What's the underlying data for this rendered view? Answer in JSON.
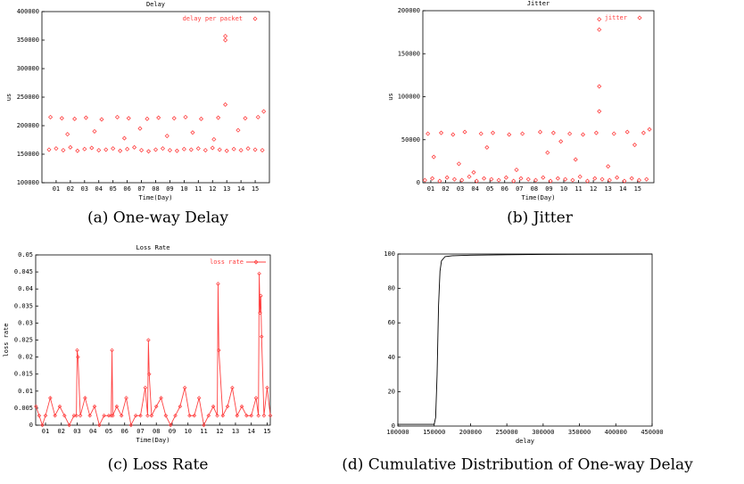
{
  "chart_data": [
    {
      "type": "scatter",
      "title": "Delay",
      "caption": "(a) One-way Delay",
      "x_label": "Time(Day)",
      "y_label": "us",
      "legend": "upper right",
      "xlim": [
        0,
        16
      ],
      "ylim": [
        100000,
        400000
      ],
      "xticks": [
        {
          "value": 1,
          "label": "01"
        },
        {
          "value": 2,
          "label": "02"
        },
        {
          "value": 3,
          "label": "03"
        },
        {
          "value": 4,
          "label": "04"
        },
        {
          "value": 5,
          "label": "05"
        },
        {
          "value": 6,
          "label": "06"
        },
        {
          "value": 7,
          "label": "07"
        },
        {
          "value": 8,
          "label": "08"
        },
        {
          "value": 9,
          "label": "09"
        },
        {
          "value": 10,
          "label": "10"
        },
        {
          "value": 11,
          "label": "11"
        },
        {
          "value": 12,
          "label": "12"
        },
        {
          "value": 13,
          "label": "13"
        },
        {
          "value": 14,
          "label": "14"
        },
        {
          "value": 15,
          "label": "15"
        }
      ],
      "yticks": [
        100000,
        150000,
        200000,
        250000,
        300000,
        350000,
        400000
      ],
      "x": [
        0.5,
        1,
        1.5,
        2,
        2.5,
        3,
        3.5,
        4,
        4.5,
        5,
        5.5,
        6,
        6.5,
        7,
        7.5,
        8,
        8.5,
        9,
        9.5,
        10,
        10.5,
        11,
        11.5,
        12,
        12.5,
        13,
        13.5,
        14,
        14.5,
        15,
        15.5,
        0.6,
        1.4,
        2.3,
        3.1,
        4.2,
        5.3,
        6.1,
        7.4,
        8.2,
        9.3,
        10.1,
        11.2,
        12.4,
        14.3,
        15.2,
        1.8,
        3.7,
        5.8,
        6.9,
        8.8,
        10.6,
        12.1,
        13.8,
        12.9,
        12.9,
        12.9,
        15.6
      ],
      "series": [
        {
          "name": "delay per packet",
          "color": "#ff4040",
          "values": [
            158000,
            160000,
            157000,
            162000,
            156000,
            159000,
            161000,
            157000,
            158000,
            160000,
            156000,
            159000,
            162000,
            157000,
            155000,
            158000,
            160000,
            157000,
            156000,
            159000,
            158000,
            160000,
            157000,
            161000,
            158000,
            156000,
            159000,
            157000,
            160000,
            158000,
            157000,
            215000,
            213000,
            212000,
            214000,
            211000,
            215000,
            213000,
            212000,
            214000,
            213000,
            215000,
            212000,
            214000,
            213000,
            215000,
            185000,
            190000,
            178000,
            195000,
            182000,
            188000,
            176000,
            192000,
            357000,
            350000,
            237000,
            225000
          ]
        }
      ]
    },
    {
      "type": "scatter",
      "title": "Jitter",
      "caption": "(b) Jitter",
      "x_label": "Time(Day)",
      "y_label": "us",
      "legend": "upper right",
      "xlim": [
        0.46,
        16.1
      ],
      "ylim": [
        0,
        200000
      ],
      "xticks": [
        {
          "value": 1,
          "label": "01"
        },
        {
          "value": 2,
          "label": "02"
        },
        {
          "value": 3,
          "label": "03"
        },
        {
          "value": 4,
          "label": "04"
        },
        {
          "value": 5,
          "label": "05"
        },
        {
          "value": 6,
          "label": "06"
        },
        {
          "value": 7,
          "label": "07"
        },
        {
          "value": 8,
          "label": "08"
        },
        {
          "value": 9,
          "label": "09"
        },
        {
          "value": 10,
          "label": "10"
        },
        {
          "value": 11,
          "label": "11"
        },
        {
          "value": 12,
          "label": "12"
        },
        {
          "value": 13,
          "label": "13"
        },
        {
          "value": 14,
          "label": "14"
        },
        {
          "value": 15,
          "label": "15"
        }
      ],
      "yticks": [
        0,
        50000,
        100000,
        150000,
        200000
      ],
      "x": [
        0.6,
        1.1,
        1.6,
        2.1,
        2.6,
        3.1,
        3.6,
        4.1,
        4.6,
        5.1,
        5.6,
        6.1,
        6.6,
        7.1,
        7.6,
        8.1,
        8.6,
        9.1,
        9.6,
        10.1,
        10.6,
        11.1,
        11.6,
        12.1,
        12.6,
        13.1,
        13.6,
        14.1,
        14.6,
        15.1,
        15.6,
        0.8,
        1.7,
        2.5,
        3.3,
        4.4,
        5.2,
        6.3,
        7.2,
        8.4,
        9.3,
        10.4,
        11.3,
        12.2,
        13.4,
        14.3,
        15.4,
        1.2,
        2.9,
        4.8,
        6.8,
        8.9,
        10.8,
        13.0,
        14.8,
        3.9,
        9.8,
        12.4,
        12.4,
        12.4,
        12.4,
        15.8
      ],
      "series": [
        {
          "name": "jitter",
          "color": "#ff4040",
          "values": [
            3000,
            5000,
            2000,
            6000,
            4000,
            3000,
            7000,
            2000,
            5000,
            4000,
            3000,
            6000,
            2000,
            5000,
            4000,
            3000,
            6000,
            2000,
            5000,
            4000,
            3000,
            7000,
            2000,
            5000,
            4000,
            3000,
            6000,
            2000,
            5000,
            3000,
            4000,
            57000,
            58000,
            56000,
            59000,
            57000,
            58000,
            56000,
            57000,
            59000,
            58000,
            57000,
            56000,
            58000,
            57000,
            59000,
            58000,
            30000,
            22000,
            41000,
            15000,
            35000,
            27000,
            19000,
            44000,
            12000,
            48000,
            190000,
            178000,
            112000,
            83000,
            62000
          ]
        }
      ]
    },
    {
      "type": "line",
      "title": "Loss Rate",
      "caption": "(c) Loss Rate",
      "x_label": "Time(Day)",
      "y_label": "loss rate",
      "legend": "upper right",
      "markers": true,
      "xlim": [
        0.38,
        15.2
      ],
      "ylim": [
        0,
        0.05
      ],
      "xticks": [
        {
          "value": 1,
          "label": "01"
        },
        {
          "value": 2,
          "label": "02"
        },
        {
          "value": 3,
          "label": "03"
        },
        {
          "value": 4,
          "label": "04"
        },
        {
          "value": 5,
          "label": "05"
        },
        {
          "value": 6,
          "label": "06"
        },
        {
          "value": 7,
          "label": "07"
        },
        {
          "value": 8,
          "label": "08"
        },
        {
          "value": 9,
          "label": "09"
        },
        {
          "value": 10,
          "label": "10"
        },
        {
          "value": 11,
          "label": "11"
        },
        {
          "value": 12,
          "label": "12"
        },
        {
          "value": 13,
          "label": "13"
        },
        {
          "value": 14,
          "label": "14"
        },
        {
          "value": 15,
          "label": "15"
        }
      ],
      "yticks": [
        0,
        0.005,
        0.01,
        0.015,
        0.02,
        0.025,
        0.03,
        0.035,
        0.04,
        0.045,
        0.05
      ],
      "x": [
        0.4,
        0.6,
        0.8,
        1.0,
        1.3,
        1.6,
        1.9,
        2.2,
        2.5,
        2.8,
        2.95,
        3.0,
        3.05,
        3.2,
        3.5,
        3.8,
        4.1,
        4.4,
        4.7,
        5.0,
        5.15,
        5.2,
        5.25,
        5.5,
        5.8,
        6.1,
        6.4,
        6.7,
        7.0,
        7.3,
        7.45,
        7.5,
        7.55,
        7.7,
        8.0,
        8.3,
        8.6,
        8.9,
        9.2,
        9.5,
        9.8,
        10.1,
        10.4,
        10.7,
        11.0,
        11.3,
        11.6,
        11.85,
        11.9,
        11.95,
        12.2,
        12.5,
        12.8,
        13.1,
        13.4,
        13.7,
        14.0,
        14.3,
        14.45,
        14.5,
        14.55,
        14.6,
        14.65,
        14.8,
        15.0,
        15.2
      ],
      "series": [
        {
          "name": "loss rate",
          "color": "#ff4040",
          "values": [
            0.0055,
            0.0028,
            0,
            0.0028,
            0.008,
            0.0028,
            0.0055,
            0.0028,
            0,
            0.0028,
            0.0028,
            0.022,
            0.02,
            0.0028,
            0.008,
            0.0028,
            0.0055,
            0,
            0.0028,
            0.0028,
            0.0028,
            0.022,
            0.0028,
            0.0055,
            0.0028,
            0.008,
            0,
            0.0028,
            0.0028,
            0.011,
            0.0028,
            0.025,
            0.015,
            0.0028,
            0.0055,
            0.008,
            0.0028,
            0,
            0.0028,
            0.0055,
            0.011,
            0.0028,
            0.0028,
            0.008,
            0,
            0.0028,
            0.0055,
            0.0028,
            0.0415,
            0.022,
            0.0028,
            0.0055,
            0.011,
            0.0028,
            0.0055,
            0.0028,
            0.0028,
            0.008,
            0.0028,
            0.0445,
            0.033,
            0.038,
            0.026,
            0.0028,
            0.011,
            0.0028
          ]
        }
      ]
    },
    {
      "type": "line",
      "caption": "(d) Cumulative Distribution of One-way Delay",
      "x_label": "delay",
      "xlim": [
        100000,
        450000
      ],
      "ylim": [
        0,
        100
      ],
      "xticks": [
        100000,
        150000,
        200000,
        250000,
        300000,
        350000,
        400000,
        450000
      ],
      "yticks": [
        0,
        20,
        40,
        60,
        80,
        100
      ],
      "x": [
        100000,
        150000,
        152000,
        154000,
        156000,
        158000,
        160000,
        165000,
        175000,
        200000,
        250000,
        300000,
        450000
      ],
      "series": [
        {
          "color": "#000000",
          "values": [
            1,
            1,
            5,
            30,
            70,
            90,
            96,
            98.5,
            99,
            99.3,
            99.6,
            99.8,
            100
          ]
        }
      ]
    }
  ]
}
